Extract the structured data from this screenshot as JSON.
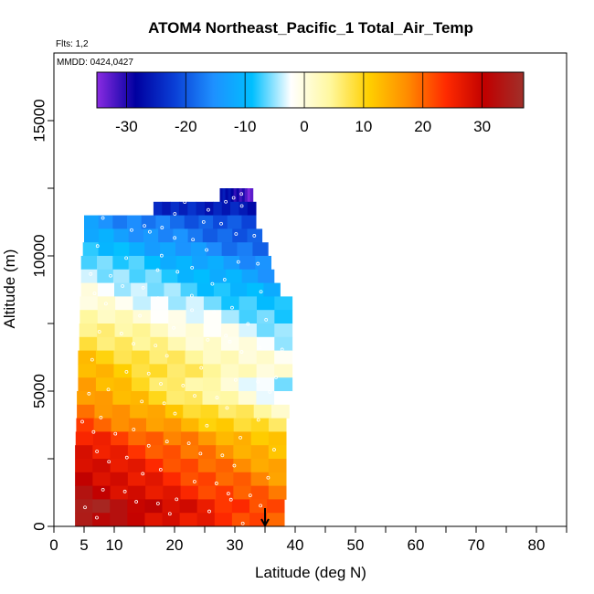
{
  "chart_data": {
    "type": "heatmap",
    "title": "ATOM4 Northeast_Pacific_1 Total_Air_Temp",
    "subtitle_flights": "Flts: 1,2",
    "date_label": "MMDD: 0424,0427",
    "xlabel": "Latitude (deg N)",
    "ylabel": "Altitude (m)",
    "xlim": [
      0,
      85
    ],
    "ylim": [
      0,
      17500
    ],
    "x_ticks": [
      0,
      5,
      10,
      20,
      30,
      40,
      50,
      60,
      70,
      80
    ],
    "y_ticks": [
      0,
      5000,
      10000,
      15000
    ],
    "colorbar": {
      "range": [
        -35,
        37
      ],
      "ticks": [
        -30,
        -20,
        -10,
        0,
        10,
        20,
        30
      ],
      "colors": [
        "#8a2be2",
        "#0000a0",
        "#0a3fd6",
        "#1e90ff",
        "#00bfff",
        "#ffffff",
        "#fff8a0",
        "#ffd000",
        "#ff8c00",
        "#ff2a00",
        "#c00000",
        "#a0302a"
      ]
    },
    "marker": {
      "x": 35,
      "y": 0,
      "label": "down-arrow"
    },
    "layers": [
      {
        "alt_bottom": 12000,
        "alt_top": 12500,
        "lat_start": 27.5,
        "lat_end": 33,
        "t_start": -25,
        "t_end": -34
      },
      {
        "alt_bottom": 11500,
        "alt_top": 12000,
        "lat_start": 16.5,
        "lat_end": 33.5,
        "t_start": -24,
        "t_end": -26
      },
      {
        "alt_bottom": 11000,
        "alt_top": 11500,
        "lat_start": 5,
        "lat_end": 33.5,
        "t_start": -14,
        "t_end": -22
      },
      {
        "alt_bottom": 10500,
        "alt_top": 11000,
        "lat_start": 5,
        "lat_end": 34.5,
        "t_start": -11,
        "t_end": -21
      },
      {
        "alt_bottom": 10000,
        "alt_top": 10500,
        "lat_start": 4.8,
        "lat_end": 35.5,
        "t_start": -8,
        "t_end": -19
      },
      {
        "alt_bottom": 9500,
        "alt_top": 10000,
        "lat_start": 4.5,
        "lat_end": 36,
        "t_start": -5,
        "t_end": -16
      },
      {
        "alt_bottom": 9000,
        "alt_top": 9500,
        "lat_start": 4.5,
        "lat_end": 36.5,
        "t_start": -3,
        "t_end": -14
      },
      {
        "alt_bottom": 8500,
        "alt_top": 9000,
        "lat_start": 4.5,
        "lat_end": 37.5,
        "t_start": -1,
        "t_end": -12
      },
      {
        "alt_bottom": 8000,
        "alt_top": 8500,
        "lat_start": 4.3,
        "lat_end": 39.5,
        "t_start": 1,
        "t_end": -10
      },
      {
        "alt_bottom": 7500,
        "alt_top": 8000,
        "lat_start": 4.3,
        "lat_end": 39.5,
        "t_start": 4,
        "t_end": -8
      },
      {
        "alt_bottom": 7000,
        "alt_top": 7500,
        "lat_start": 4.2,
        "lat_end": 39.5,
        "t_start": 7,
        "t_end": -6
      },
      {
        "alt_bottom": 6500,
        "alt_top": 7000,
        "lat_start": 4.2,
        "lat_end": 39.5,
        "t_start": 9,
        "t_end": -4
      },
      {
        "alt_bottom": 6000,
        "alt_top": 6500,
        "lat_start": 4,
        "lat_end": 39.5,
        "t_start": 12,
        "t_end": -2
      },
      {
        "alt_bottom": 5500,
        "alt_top": 6000,
        "lat_start": 4,
        "lat_end": 39.5,
        "t_start": 14,
        "t_end": -1
      },
      {
        "alt_bottom": 5000,
        "alt_top": 5500,
        "lat_start": 4,
        "lat_end": 39.5,
        "t_start": 16,
        "t_end": -6
      },
      {
        "alt_bottom": 4500,
        "alt_top": 5000,
        "lat_start": 3.8,
        "lat_end": 39.5,
        "t_start": 18,
        "t_end": -4
      },
      {
        "alt_bottom": 4000,
        "alt_top": 4500,
        "lat_start": 3.8,
        "lat_end": 39,
        "t_start": 20,
        "t_end": 2
      },
      {
        "alt_bottom": 3500,
        "alt_top": 4000,
        "lat_start": 3.7,
        "lat_end": 38.5,
        "t_start": 22,
        "t_end": 6
      },
      {
        "alt_bottom": 3000,
        "alt_top": 3500,
        "lat_start": 3.6,
        "lat_end": 38.5,
        "t_start": 26,
        "t_end": 10
      },
      {
        "alt_bottom": 2500,
        "alt_top": 3000,
        "lat_start": 3.5,
        "lat_end": 38.5,
        "t_start": 28,
        "t_end": 12
      },
      {
        "alt_bottom": 2000,
        "alt_top": 2500,
        "lat_start": 3.5,
        "lat_end": 38.5,
        "t_start": 30,
        "t_end": 14
      },
      {
        "alt_bottom": 1500,
        "alt_top": 2000,
        "lat_start": 3.5,
        "lat_end": 38.5,
        "t_start": 31,
        "t_end": 16
      },
      {
        "alt_bottom": 1000,
        "alt_top": 1500,
        "lat_start": 3.5,
        "lat_end": 38.5,
        "t_start": 32,
        "t_end": 18
      },
      {
        "alt_bottom": 500,
        "alt_top": 1000,
        "lat_start": 3.5,
        "lat_end": 38.2,
        "t_start": 36,
        "t_end": 20
      },
      {
        "alt_bottom": 0,
        "alt_top": 500,
        "lat_start": 3.5,
        "lat_end": 38.2,
        "t_start": 34,
        "t_end": 20
      }
    ]
  }
}
